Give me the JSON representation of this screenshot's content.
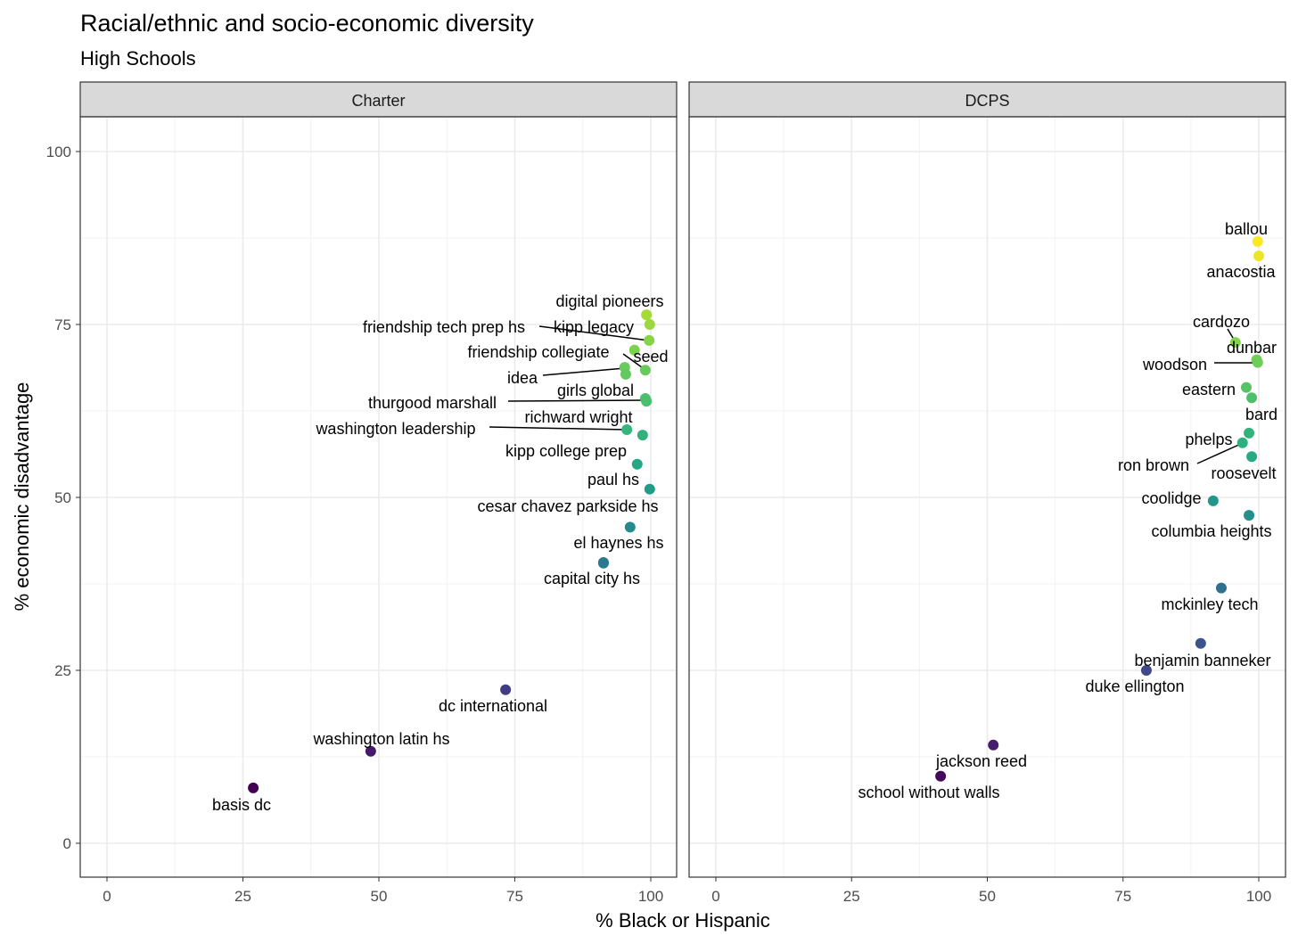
{
  "chart_data": {
    "type": "scatter",
    "title": "Racial/ethnic and socio-economic diversity",
    "subtitle": "High Schools",
    "xlabel": "% Black or Hispanic",
    "ylabel": "% economic disadvantage",
    "xlim": [
      0,
      100
    ],
    "ylim": [
      0,
      100
    ],
    "xticks": [
      "0",
      "25",
      "50",
      "75",
      "100"
    ],
    "yticks": [
      "0",
      "25",
      "50",
      "75",
      "100"
    ],
    "grid": true,
    "color_scale": "viridis by % economic disadvantage",
    "facets": [
      "Charter",
      "DCPS"
    ],
    "points": [
      {
        "facet": "Charter",
        "label": "digital pioneers",
        "x": 99.2,
        "y": 76.4
      },
      {
        "facet": "Charter",
        "label": "kipp legacy",
        "x": 99.8,
        "y": 75.0
      },
      {
        "facet": "Charter",
        "label": "friendship tech prep hs",
        "x": 99.7,
        "y": 72.7
      },
      {
        "facet": "Charter",
        "label": "seed",
        "x": 97.0,
        "y": 71.3
      },
      {
        "facet": "Charter",
        "label": "friendship collegiate",
        "x": 99.0,
        "y": 68.4
      },
      {
        "facet": "Charter",
        "label": "idea",
        "x": 95.2,
        "y": 68.8
      },
      {
        "facet": "Charter",
        "label": "",
        "x": 95.4,
        "y": 67.8
      },
      {
        "facet": "Charter",
        "label": "girls global",
        "x": 99.0,
        "y": 64.3
      },
      {
        "facet": "Charter",
        "label": "thurgood marshall",
        "x": 99.2,
        "y": 63.9
      },
      {
        "facet": "Charter",
        "label": "washington leadership",
        "x": 95.6,
        "y": 59.8
      },
      {
        "facet": "Charter",
        "label": "richward wright",
        "x": 98.5,
        "y": 59.0
      },
      {
        "facet": "Charter",
        "label": "kipp college prep",
        "x": 97.5,
        "y": 54.8
      },
      {
        "facet": "Charter",
        "label": "paul hs",
        "x": 99.8,
        "y": 51.2
      },
      {
        "facet": "Charter",
        "label": "cesar chavez parkside hs",
        "x": 96.2,
        "y": 45.7
      },
      {
        "facet": "Charter",
        "label": "el haynes hs",
        "x": 91.3,
        "y": 40.6
      },
      {
        "facet": "Charter",
        "label": "capital city hs",
        "x": 91.3,
        "y": 40.5
      },
      {
        "facet": "Charter",
        "label": "dc international",
        "x": 73.3,
        "y": 22.2
      },
      {
        "facet": "Charter",
        "label": "washington latin hs",
        "x": 48.5,
        "y": 13.3
      },
      {
        "facet": "Charter",
        "label": "basis dc",
        "x": 26.9,
        "y": 8.0
      },
      {
        "facet": "DCPS",
        "label": "ballou",
        "x": 99.8,
        "y": 87.0
      },
      {
        "facet": "DCPS",
        "label": "anacostia",
        "x": 100,
        "y": 84.9
      },
      {
        "facet": "DCPS",
        "label": "cardozo",
        "x": 95.7,
        "y": 72.4
      },
      {
        "facet": "DCPS",
        "label": "dunbar",
        "x": 99.6,
        "y": 69.9
      },
      {
        "facet": "DCPS",
        "label": "woodson",
        "x": 99.8,
        "y": 69.5
      },
      {
        "facet": "DCPS",
        "label": "eastern",
        "x": 97.7,
        "y": 65.9
      },
      {
        "facet": "DCPS",
        "label": "bard",
        "x": 98.7,
        "y": 64.4
      },
      {
        "facet": "DCPS",
        "label": "phelps",
        "x": 98.2,
        "y": 59.3
      },
      {
        "facet": "DCPS",
        "label": "ron brown",
        "x": 97.0,
        "y": 57.9
      },
      {
        "facet": "DCPS",
        "label": "roosevelt",
        "x": 98.7,
        "y": 55.9
      },
      {
        "facet": "DCPS",
        "label": "coolidge",
        "x": 91.6,
        "y": 49.5
      },
      {
        "facet": "DCPS",
        "label": "columbia heights",
        "x": 98.2,
        "y": 47.4
      },
      {
        "facet": "DCPS",
        "label": "mckinley tech",
        "x": 93.1,
        "y": 36.9
      },
      {
        "facet": "DCPS",
        "label": "benjamin banneker",
        "x": 89.3,
        "y": 28.9
      },
      {
        "facet": "DCPS",
        "label": "duke ellington",
        "x": 79.3,
        "y": 25.0
      },
      {
        "facet": "DCPS",
        "label": "jackson reed",
        "x": 51.1,
        "y": 14.2
      },
      {
        "facet": "DCPS",
        "label": "school without walls",
        "x": 41.4,
        "y": 9.7
      }
    ]
  }
}
